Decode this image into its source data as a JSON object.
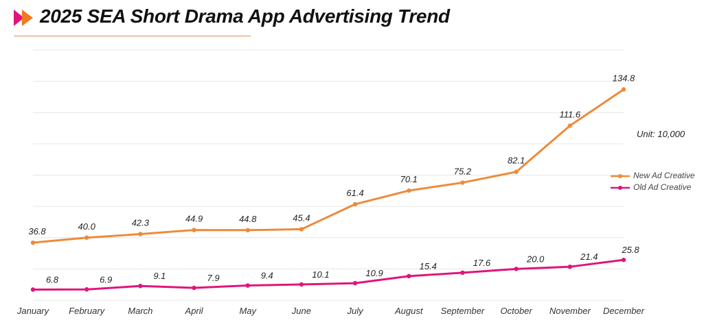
{
  "header": {
    "title": "2025 SEA Short Drama App Advertising Trend"
  },
  "colors": {
    "accent_orange": "#f07a1f",
    "accent_pink": "#e0157a",
    "new_series": "#ee8a3a",
    "old_series": "#e0157a",
    "grid": "#e6e6e6"
  },
  "chart_data": {
    "type": "line",
    "title": "2025 SEA Short Drama App Advertising Trend",
    "unit_label": "Unit: 10,000",
    "categories": [
      "January",
      "February",
      "March",
      "April",
      "May",
      "June",
      "July",
      "August",
      "September",
      "October",
      "November",
      "December"
    ],
    "series": [
      {
        "name": "New Ad Creative",
        "color": "#ee8a3a",
        "values": [
          36.8,
          40.0,
          42.3,
          44.9,
          44.8,
          45.4,
          61.4,
          70.1,
          75.2,
          82.1,
          111.6,
          134.8
        ],
        "labels": [
          "36.8",
          "40.0",
          "42.3",
          "44.9",
          "44.8",
          "45.4",
          "61.4",
          "70.1",
          "75.2",
          "82.1",
          "111.6",
          "134.8"
        ]
      },
      {
        "name": "Old Ad Creative",
        "color": "#e0157a",
        "values": [
          6.8,
          6.9,
          9.1,
          7.9,
          9.4,
          10.1,
          10.9,
          15.4,
          17.6,
          20.0,
          21.4,
          25.8
        ],
        "labels": [
          "6.8",
          "6.9",
          "9.1",
          "7.9",
          "9.4",
          "10.1",
          "10.9",
          "15.4",
          "17.6",
          "20.0",
          "21.4",
          "25.8"
        ]
      }
    ],
    "ylim": [
      0,
      160
    ],
    "grid": true,
    "legend": "right"
  }
}
